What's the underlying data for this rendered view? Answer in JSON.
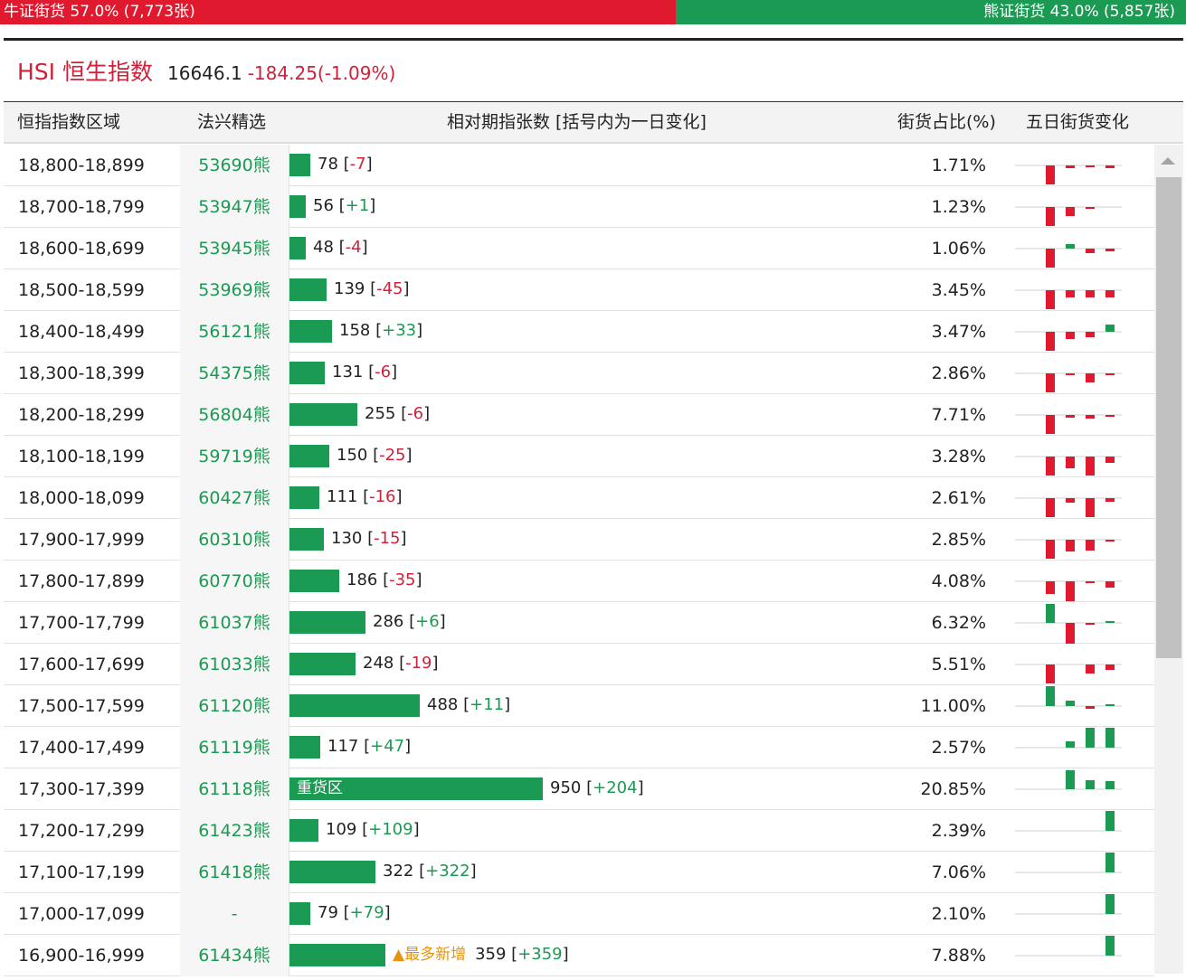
{
  "summary": {
    "bull_label": "牛证街货 57.0% (7,773张)",
    "bear_label": "熊证街货 43.0% (5,857张)",
    "bull_pct": 57.0,
    "bear_pct": 43.0,
    "colors": {
      "bull": "#e0192e",
      "bear": "#1a9a52"
    }
  },
  "index": {
    "name": "HSI 恒生指数",
    "value": "16646.1",
    "change": "-184.25(-1.09%)"
  },
  "table": {
    "headers": {
      "range": "恒指指数区域",
      "pick": "法兴精选",
      "count": "相对期指张数 [括号内为一日变化]",
      "pct": "街货占比(%)",
      "five_day": "五日街货变化"
    },
    "max_count": 950,
    "rows": [
      {
        "range": "18,800-18,899",
        "pick": "53690熊",
        "count": "78",
        "delta": "-7",
        "pct": "1.71%",
        "five": [
          -0.9,
          -0.12,
          -0.1,
          -0.12
        ]
      },
      {
        "range": "18,700-18,799",
        "pick": "53947熊",
        "count": "56",
        "delta": "+1",
        "pct": "1.23%",
        "five": [
          -0.9,
          -0.42,
          -0.1,
          0
        ]
      },
      {
        "range": "18,600-18,699",
        "pick": "53945熊",
        "count": "48",
        "delta": "-4",
        "pct": "1.06%",
        "five": [
          -0.9,
          0.2,
          -0.2,
          -0.12
        ]
      },
      {
        "range": "18,500-18,599",
        "pick": "53969熊",
        "count": "139",
        "delta": "-45",
        "pct": "3.45%",
        "five": [
          -0.9,
          -0.35,
          -0.35,
          -0.35
        ]
      },
      {
        "range": "18,400-18,499",
        "pick": "56121熊",
        "count": "158",
        "delta": "+33",
        "pct": "3.47%",
        "five": [
          -0.9,
          -0.35,
          -0.25,
          0.35
        ]
      },
      {
        "range": "18,300-18,399",
        "pick": "54375熊",
        "count": "131",
        "delta": "-6",
        "pct": "2.86%",
        "five": [
          -0.9,
          -0.1,
          -0.45,
          -0.08
        ]
      },
      {
        "range": "18,200-18,299",
        "pick": "56804熊",
        "count": "255",
        "delta": "-6",
        "pct": "7.71%",
        "five": [
          -0.9,
          -0.12,
          -0.18,
          -0.08
        ]
      },
      {
        "range": "18,100-18,199",
        "pick": "59719熊",
        "count": "150",
        "delta": "-25",
        "pct": "3.28%",
        "five": [
          -0.9,
          -0.55,
          -0.9,
          -0.3
        ]
      },
      {
        "range": "18,000-18,099",
        "pick": "60427熊",
        "count": "111",
        "delta": "-16",
        "pct": "2.61%",
        "five": [
          -0.9,
          -0.2,
          -0.9,
          -0.18
        ]
      },
      {
        "range": "17,900-17,999",
        "pick": "60310熊",
        "count": "130",
        "delta": "-15",
        "pct": "2.85%",
        "five": [
          -0.9,
          -0.55,
          -0.5,
          -0.08
        ]
      },
      {
        "range": "17,800-17,899",
        "pick": "60770熊",
        "count": "186",
        "delta": "-35",
        "pct": "4.08%",
        "five": [
          -0.6,
          -0.95,
          -0.1,
          -0.3
        ]
      },
      {
        "range": "17,700-17,799",
        "pick": "61037熊",
        "count": "286",
        "delta": "+6",
        "pct": "6.32%",
        "five": [
          0.9,
          -1.0,
          -0.08,
          0.05
        ]
      },
      {
        "range": "17,600-17,699",
        "pick": "61033熊",
        "count": "248",
        "delta": "-19",
        "pct": "5.51%",
        "five": [
          -0.9,
          0,
          -0.45,
          -0.25
        ]
      },
      {
        "range": "17,500-17,599",
        "pick": "61120熊",
        "count": "488",
        "delta": "+11",
        "pct": "11.00%",
        "five": [
          0.95,
          0.25,
          -0.15,
          0.05
        ]
      },
      {
        "range": "17,400-17,499",
        "pick": "61119熊",
        "count": "117",
        "delta": "+47",
        "pct": "2.57%",
        "five": [
          0,
          0.3,
          0.95,
          0.95
        ]
      },
      {
        "range": "17,300-17,399",
        "pick": "61118熊",
        "count": "950",
        "delta": "+204",
        "pct": "20.85%",
        "five": [
          0,
          0.9,
          0.45,
          0.4
        ],
        "tag": "重货区"
      },
      {
        "range": "17,200-17,299",
        "pick": "61423熊",
        "count": "109",
        "delta": "+109",
        "pct": "2.39%",
        "five": [
          0,
          0,
          0,
          0.95
        ]
      },
      {
        "range": "17,100-17,199",
        "pick": "61418熊",
        "count": "322",
        "delta": "+322",
        "pct": "7.06%",
        "five": [
          0,
          0,
          0,
          0.95
        ]
      },
      {
        "range": "17,000-17,099",
        "pick": "-",
        "count": "79",
        "delta": "+79",
        "pct": "2.10%",
        "five": [
          0,
          0,
          0,
          0.95
        ]
      },
      {
        "range": "16,900-16,999",
        "pick": "61434熊",
        "count": "359",
        "delta": "+359",
        "pct": "7.88%",
        "five": [
          0,
          0,
          0,
          0.95
        ],
        "badge": "▲最多新增"
      }
    ]
  }
}
